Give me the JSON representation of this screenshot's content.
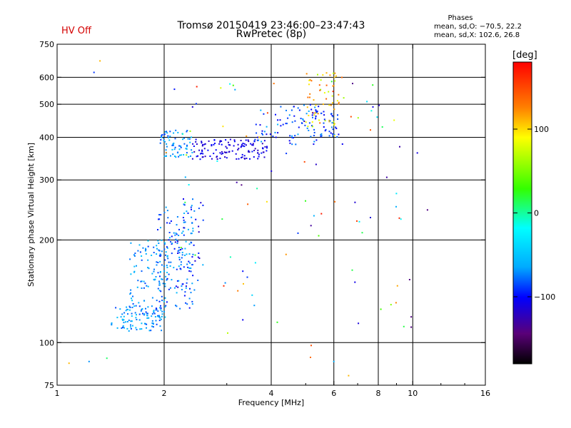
{
  "header": {
    "hv_status": "HV Off",
    "title_line1": "Tromsø 20150419 23:46:00–23:47:43",
    "title_line2": "RwPretec (8p)",
    "phases_heading": "Phases",
    "phases_o": "mean, sd,O: −70.5, 22.2",
    "phases_x": "mean, sd,X: 102.6, 26.8"
  },
  "colorbar": {
    "unit": "[deg]",
    "range": [
      -180,
      180
    ],
    "tick_values": [
      100,
      0,
      -100
    ],
    "tick_labels": [
      "100",
      "0",
      "−100"
    ]
  },
  "chart_data": {
    "type": "scatter",
    "xlabel": "Frequency [MHz]",
    "ylabel": "Stationary phase Virtual Height [km]",
    "x_scale": "log",
    "y_scale": "log",
    "xlim": [
      1,
      16
    ],
    "ylim": [
      75,
      750
    ],
    "x_ticks": [
      1,
      2,
      4,
      6,
      8,
      10,
      16
    ],
    "x_tick_labels": [
      "1",
      "2",
      "4",
      "6",
      "8",
      "10",
      "16"
    ],
    "y_ticks": [
      75,
      100,
      200,
      300,
      400,
      500,
      600,
      750
    ],
    "y_tick_labels": [
      "75",
      "100",
      "200",
      "300",
      "400",
      "500",
      "600",
      "750"
    ],
    "grid": true,
    "colorscale_note": "point color encodes phase in degrees",
    "clusters": [
      {
        "fmin": 1.42,
        "fmax": 1.98,
        "hmin": 108,
        "hmax": 128,
        "n": 90,
        "phmin": -90,
        "phmax": -50
      },
      {
        "fmin": 1.6,
        "fmax": 2.05,
        "hmin": 118,
        "hmax": 200,
        "n": 110,
        "phmin": -90,
        "phmax": -45
      },
      {
        "fmin": 1.9,
        "fmax": 2.45,
        "hmin": 125,
        "hmax": 250,
        "n": 150,
        "phmin": -100,
        "phmax": -55
      },
      {
        "fmin": 2.15,
        "fmax": 2.6,
        "hmin": 140,
        "hmax": 270,
        "n": 40,
        "phmin": -120,
        "phmax": -60
      },
      {
        "fmin": 1.95,
        "fmax": 2.4,
        "hmin": 350,
        "hmax": 420,
        "n": 70,
        "phmin": -90,
        "phmax": -50
      },
      {
        "fmin": 2.4,
        "fmax": 3.9,
        "hmin": 345,
        "hmax": 395,
        "n": 130,
        "phmin": -125,
        "phmax": -95
      },
      {
        "fmin": 3.6,
        "fmax": 5.6,
        "hmin": 380,
        "hmax": 500,
        "n": 80,
        "phmin": -110,
        "phmax": -60
      },
      {
        "fmin": 5.0,
        "fmax": 6.4,
        "hmin": 430,
        "hmax": 620,
        "n": 60,
        "phmin": 60,
        "phmax": 140
      },
      {
        "fmin": 5.2,
        "fmax": 6.2,
        "hmin": 400,
        "hmax": 480,
        "n": 40,
        "phmin": -110,
        "phmax": -70
      },
      {
        "fmin": 2.0,
        "fmax": 9.5,
        "hmin": 90,
        "hmax": 600,
        "n": 90,
        "phmin": -140,
        "phmax": 170
      }
    ],
    "points": [
      {
        "f": 1.27,
        "h": 620,
        "ph": -90
      },
      {
        "f": 1.32,
        "h": 670,
        "ph": 110
      },
      {
        "f": 1.08,
        "h": 87,
        "ph": 110
      },
      {
        "f": 1.23,
        "h": 88,
        "ph": -70
      },
      {
        "f": 1.38,
        "h": 90,
        "ph": 10
      },
      {
        "f": 3.2,
        "h": 295,
        "ph": -130
      },
      {
        "f": 3.3,
        "h": 290,
        "ph": -140
      },
      {
        "f": 6.0,
        "h": 88,
        "ph": -60
      },
      {
        "f": 6.6,
        "h": 80,
        "ph": 110
      },
      {
        "f": 9.9,
        "h": 111,
        "ph": -140
      },
      {
        "f": 9.9,
        "h": 119,
        "ph": -140
      },
      {
        "f": 9.8,
        "h": 153,
        "ph": -140
      },
      {
        "f": 11.0,
        "h": 245,
        "ph": -140
      },
      {
        "f": 10.3,
        "h": 360,
        "ph": -110
      }
    ]
  }
}
